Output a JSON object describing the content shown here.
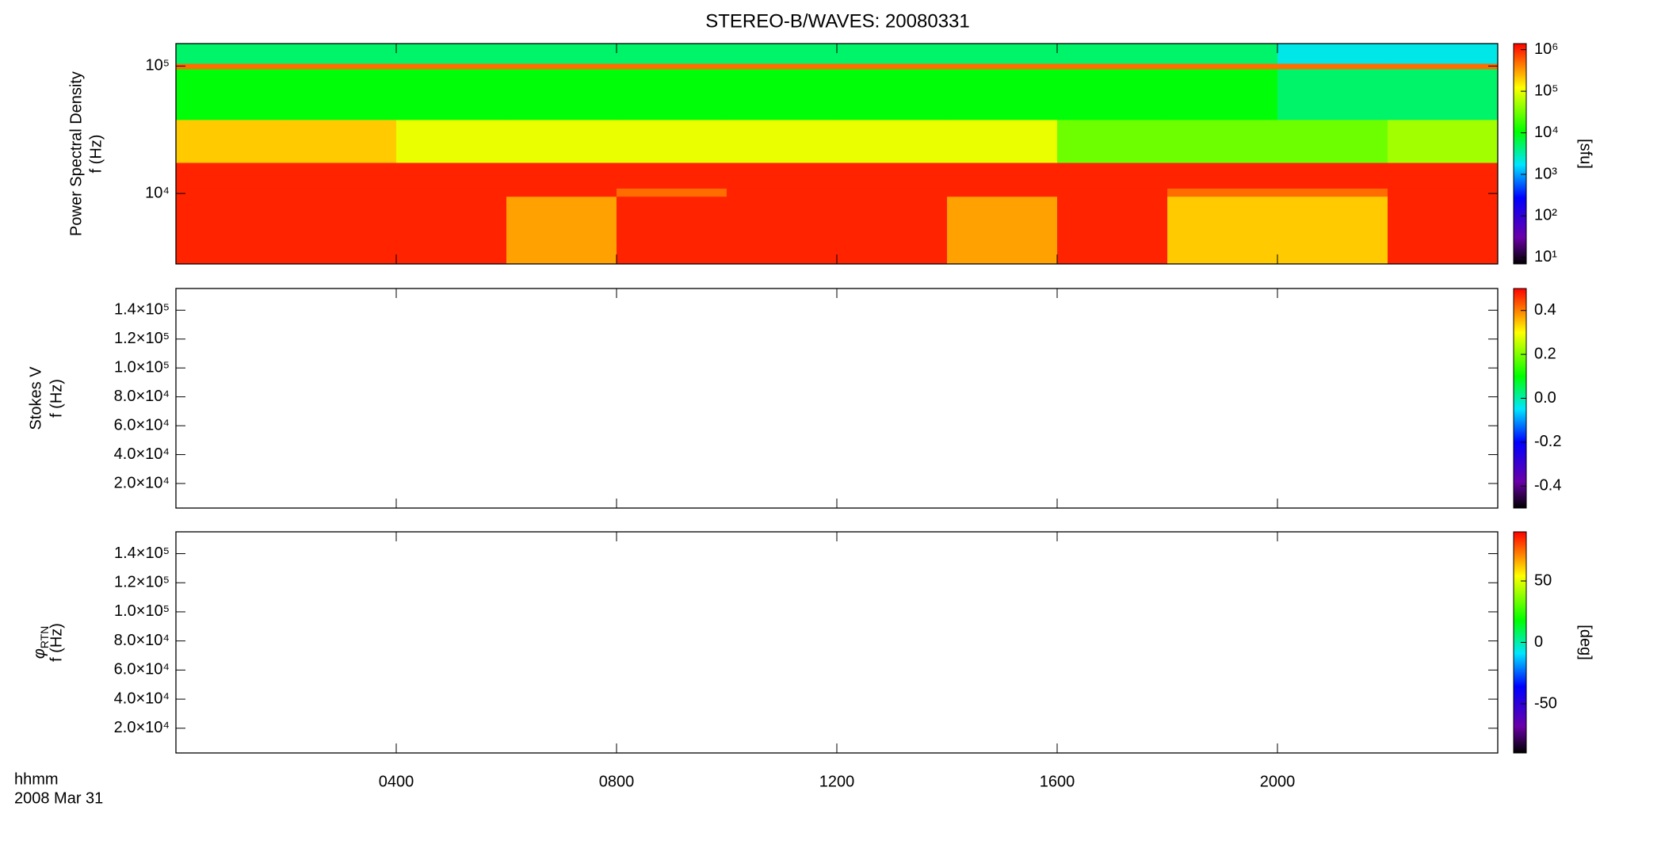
{
  "chart_data": [
    {
      "type": "heatmap",
      "title": "STEREO-B/WAVES: 20080331",
      "ylabel": "Power Spectral Density",
      "ylabel2": "f (Hz)",
      "colorbar_label": "[sfu]",
      "ylog": true,
      "zlog": true,
      "xlim": [
        0,
        24
      ],
      "xticks": [
        4,
        8,
        12,
        16,
        20
      ],
      "ylim": [
        2800,
        150000
      ],
      "yticks": [
        {
          "value": 10000,
          "label": "10⁴"
        },
        {
          "value": 100000,
          "label": "10⁵"
        }
      ],
      "zlim": [
        7,
        1400000
      ],
      "zticks": [
        {
          "value": 10,
          "label": "10¹"
        },
        {
          "value": 100,
          "label": "10²"
        },
        {
          "value": 1000,
          "label": "10³"
        },
        {
          "value": 10000,
          "label": "10⁴"
        },
        {
          "value": 100000,
          "label": "10⁵"
        },
        {
          "value": 1000000,
          "label": "10⁶"
        }
      ],
      "x_bins": [
        0,
        2,
        4,
        6,
        8,
        10,
        12,
        14,
        16,
        18,
        20,
        22,
        24
      ],
      "y_bins": [
        2800,
        9500,
        11000,
        14000,
        17500,
        38000,
        95000,
        105000,
        150000
      ],
      "z": [
        [
          1000000,
          1000000,
          1000000,
          300000,
          1000000,
          1000000,
          1000000,
          300000,
          1000000,
          200000,
          200000,
          1000000
        ],
        [
          1000000,
          1000000,
          1000000,
          1000000,
          500000,
          1000000,
          1000000,
          1000000,
          1000000,
          500000,
          500000,
          1000000
        ],
        [
          1000000,
          1000000,
          1000000,
          1000000,
          1000000,
          1000000,
          1000000,
          1000000,
          1000000,
          1000000,
          1000000,
          1000000
        ],
        [
          1000000,
          1000000,
          1000000,
          1000000,
          1000000,
          1000000,
          1000000,
          1000000,
          1000000,
          1000000,
          1000000,
          1000000
        ],
        [
          200000,
          200000,
          100000,
          100000,
          100000,
          100000,
          100000,
          100000,
          30000,
          30000,
          30000,
          50000
        ],
        [
          10000,
          10000,
          10000,
          10000,
          10000,
          10000,
          10000,
          10000,
          10000,
          10000,
          5000,
          5000
        ],
        [
          500000,
          500000,
          500000,
          500000,
          500000,
          500000,
          500000,
          500000,
          500000,
          500000,
          500000,
          500000
        ],
        [
          5000,
          5000,
          5000,
          5000,
          5000,
          5000,
          5000,
          5000,
          5000,
          5000,
          2000,
          2000
        ]
      ]
    },
    {
      "type": "heatmap",
      "ylabel": "Stokes V",
      "ylabel2": "f (Hz)",
      "xlim": [
        0,
        24
      ],
      "xticks": [
        4,
        8,
        12,
        16,
        20
      ],
      "ylim": [
        3000,
        155000
      ],
      "yticks": [
        {
          "value": 20000,
          "label": "2.0×10⁴"
        },
        {
          "value": 40000,
          "label": "4.0×10⁴"
        },
        {
          "value": 60000,
          "label": "6.0×10⁴"
        },
        {
          "value": 80000,
          "label": "8.0×10⁴"
        },
        {
          "value": 100000,
          "label": "1.0×10⁵"
        },
        {
          "value": 120000,
          "label": "1.2×10⁵"
        },
        {
          "value": 140000,
          "label": "1.4×10⁵"
        }
      ],
      "zlim": [
        -0.5,
        0.5
      ],
      "zticks": [
        -0.4,
        -0.2,
        {
          "value": 0,
          "label": "0.0"
        },
        0.2,
        0.4
      ]
    },
    {
      "type": "heatmap",
      "ylabel": "φ",
      "ylabel_sub": "RTN",
      "ylabel2": "f (Hz)",
      "colorbar_label": "[deg]",
      "xlabel": "hhmm",
      "xsublabel": "2008 Mar 31",
      "xlim": [
        0,
        24
      ],
      "xticks": [
        {
          "value": 4,
          "label": "0400"
        },
        {
          "value": 8,
          "label": "0800"
        },
        {
          "value": 12,
          "label": "1200"
        },
        {
          "value": 16,
          "label": "1600"
        },
        {
          "value": 20,
          "label": "2000"
        }
      ],
      "ylim": [
        3000,
        155000
      ],
      "yticks": [
        {
          "value": 20000,
          "label": "2.0×10⁴"
        },
        {
          "value": 40000,
          "label": "4.0×10⁴"
        },
        {
          "value": 60000,
          "label": "6.0×10⁴"
        },
        {
          "value": 80000,
          "label": "8.0×10⁴"
        },
        {
          "value": 100000,
          "label": "1.0×10⁵"
        },
        {
          "value": 120000,
          "label": "1.2×10⁵"
        },
        {
          "value": 140000,
          "label": "1.4×10⁵"
        }
      ],
      "zlim": [
        -90,
        90
      ],
      "zticks": [
        -50,
        0,
        50
      ]
    }
  ]
}
